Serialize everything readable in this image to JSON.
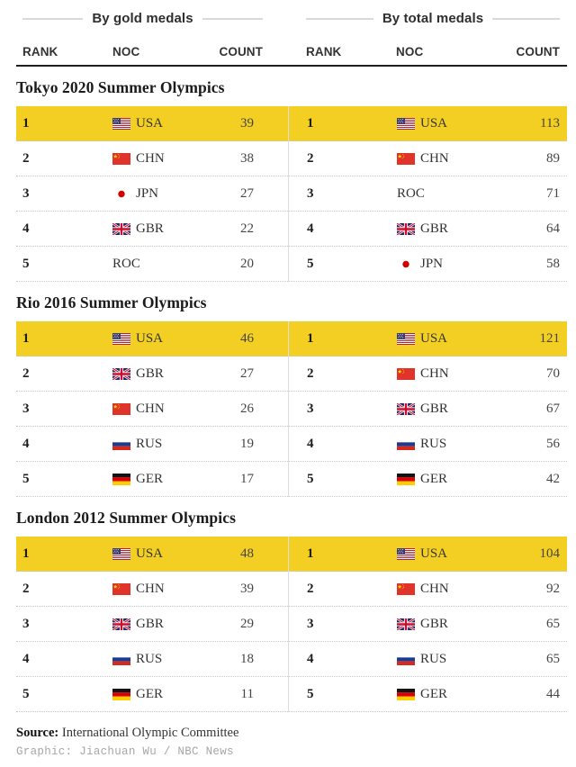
{
  "header": {
    "groups": [
      {
        "label": "By gold medals"
      },
      {
        "label": "By total medals"
      }
    ],
    "columns": [
      "RANK",
      "NOC",
      "COUNT"
    ]
  },
  "chart_data": {
    "type": "table",
    "title": "Summer Olympics: top 5 NOCs by gold medals and by total medals",
    "group_headers": [
      "By gold medals",
      "By total medals"
    ],
    "columns": [
      "RANK",
      "NOC",
      "COUNT"
    ],
    "sections": [
      {
        "title": "Tokyo 2020 Summer Olympics",
        "by_gold": [
          {
            "rank": 1,
            "noc": "USA",
            "flag": "usa",
            "count": 39,
            "highlight": true
          },
          {
            "rank": 2,
            "noc": "CHN",
            "flag": "chn",
            "count": 38
          },
          {
            "rank": 3,
            "noc": "JPN",
            "flag": "jpn",
            "count": 27
          },
          {
            "rank": 4,
            "noc": "GBR",
            "flag": "gbr",
            "count": 22
          },
          {
            "rank": 5,
            "noc": "ROC",
            "flag": "",
            "count": 20
          }
        ],
        "by_total": [
          {
            "rank": 1,
            "noc": "USA",
            "flag": "usa",
            "count": 113,
            "highlight": true
          },
          {
            "rank": 2,
            "noc": "CHN",
            "flag": "chn",
            "count": 89
          },
          {
            "rank": 3,
            "noc": "ROC",
            "flag": "",
            "count": 71
          },
          {
            "rank": 4,
            "noc": "GBR",
            "flag": "gbr",
            "count": 64
          },
          {
            "rank": 5,
            "noc": "JPN",
            "flag": "jpn",
            "count": 58
          }
        ]
      },
      {
        "title": "Rio 2016 Summer Olympics",
        "by_gold": [
          {
            "rank": 1,
            "noc": "USA",
            "flag": "usa",
            "count": 46,
            "highlight": true
          },
          {
            "rank": 2,
            "noc": "GBR",
            "flag": "gbr",
            "count": 27
          },
          {
            "rank": 3,
            "noc": "CHN",
            "flag": "chn",
            "count": 26
          },
          {
            "rank": 4,
            "noc": "RUS",
            "flag": "rus",
            "count": 19
          },
          {
            "rank": 5,
            "noc": "GER",
            "flag": "ger",
            "count": 17
          }
        ],
        "by_total": [
          {
            "rank": 1,
            "noc": "USA",
            "flag": "usa",
            "count": 121,
            "highlight": true
          },
          {
            "rank": 2,
            "noc": "CHN",
            "flag": "chn",
            "count": 70
          },
          {
            "rank": 3,
            "noc": "GBR",
            "flag": "gbr",
            "count": 67
          },
          {
            "rank": 4,
            "noc": "RUS",
            "flag": "rus",
            "count": 56
          },
          {
            "rank": 5,
            "noc": "GER",
            "flag": "ger",
            "count": 42
          }
        ]
      },
      {
        "title": "London 2012 Summer Olympics",
        "by_gold": [
          {
            "rank": 1,
            "noc": "USA",
            "flag": "usa",
            "count": 48,
            "highlight": true
          },
          {
            "rank": 2,
            "noc": "CHN",
            "flag": "chn",
            "count": 39
          },
          {
            "rank": 3,
            "noc": "GBR",
            "flag": "gbr",
            "count": 29
          },
          {
            "rank": 4,
            "noc": "RUS",
            "flag": "rus",
            "count": 18
          },
          {
            "rank": 5,
            "noc": "GER",
            "flag": "ger",
            "count": 11
          }
        ],
        "by_total": [
          {
            "rank": 1,
            "noc": "USA",
            "flag": "usa",
            "count": 104,
            "highlight": true
          },
          {
            "rank": 2,
            "noc": "CHN",
            "flag": "chn",
            "count": 92
          },
          {
            "rank": 3,
            "noc": "GBR",
            "flag": "gbr",
            "count": 65
          },
          {
            "rank": 4,
            "noc": "RUS",
            "flag": "rus",
            "count": 65
          },
          {
            "rank": 5,
            "noc": "GER",
            "flag": "ger",
            "count": 44
          }
        ]
      }
    ]
  },
  "footer": {
    "source_label": "Source:",
    "source_text": "International Olympic Committee",
    "credit": "Graphic: Jiachuan Wu / NBC News"
  },
  "colors": {
    "highlight_yellow": "#F2CF22",
    "rule_dark": "#1f1f1f",
    "divider_gray": "#dddddd",
    "dotted_separator": "#c9c9c9"
  }
}
